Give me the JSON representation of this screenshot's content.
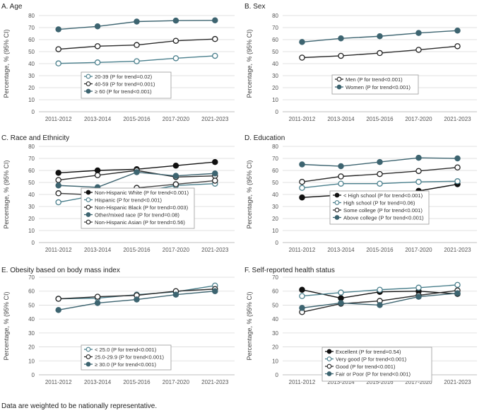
{
  "footnote": "Data are weighted to be nationally representative.",
  "chart_data": [
    {
      "type": "line",
      "title": "A. Age",
      "ylabel": "Percentage, % (95% CI)",
      "ylim": [
        0,
        80
      ],
      "yticks": [
        0,
        10,
        20,
        30,
        40,
        50,
        60,
        70,
        80
      ],
      "categories": [
        "2011-2012",
        "2013-2014",
        "2015-2016",
        "2017-2020",
        "2021-2023"
      ],
      "series": [
        {
          "name": "20-39 (P for trend=0.02)",
          "marker": "open",
          "color": "#4a7f8c",
          "values": [
            40.2,
            41.0,
            42.0,
            44.5,
            46.5
          ]
        },
        {
          "name": "40-59 (P for trend=0.001)",
          "marker": "open",
          "color": "#2b2b2b",
          "values": [
            52.0,
            54.5,
            55.5,
            59.0,
            60.5
          ]
        },
        {
          "name": "≥ 60 (P for trend<0.001)",
          "marker": "filled",
          "color": "#3d6470",
          "values": [
            68.5,
            71.0,
            75.0,
            75.8,
            76.0
          ]
        }
      ]
    },
    {
      "type": "line",
      "title": "B. Sex",
      "ylabel": "Percentage, % (95% CI)",
      "ylim": [
        0,
        80
      ],
      "yticks": [
        0,
        10,
        20,
        30,
        40,
        50,
        60,
        70,
        80
      ],
      "categories": [
        "2011-2012",
        "2013-2014",
        "2015-2016",
        "2017-2020",
        "2021-2023"
      ],
      "series": [
        {
          "name": "Men (P for trend<0.001)",
          "marker": "open",
          "color": "#2b2b2b",
          "values": [
            45.0,
            46.5,
            48.8,
            51.5,
            54.5
          ]
        },
        {
          "name": "Women (P for trend<0.001)",
          "marker": "filled",
          "color": "#3d6470",
          "values": [
            58.0,
            61.0,
            62.8,
            65.5,
            67.5
          ]
        }
      ]
    },
    {
      "type": "line",
      "title": "C. Race and Ethnicity",
      "ylabel": "Percentage, % (95% CI)",
      "ylim": [
        0,
        80
      ],
      "yticks": [
        0,
        10,
        20,
        30,
        40,
        50,
        60,
        70,
        80
      ],
      "categories": [
        "2011-2012",
        "2013-2014",
        "2015-2016",
        "2017-2020",
        "2021-2023"
      ],
      "series": [
        {
          "name": "Non-Hispanic White (P for trend<0.001)",
          "marker": "filled",
          "color": "#111111",
          "values": [
            58.0,
            60.0,
            61.0,
            64.0,
            67.0
          ]
        },
        {
          "name": "Hispanic (P for trend<0.001)",
          "marker": "open",
          "color": "#4a7f8c",
          "values": [
            33.5,
            39.5,
            41.5,
            47.5,
            49.0
          ]
        },
        {
          "name": "Non-Hispanic Black (P for trend=0.003)",
          "marker": "open",
          "color": "#2b2b2b",
          "values": [
            52.0,
            56.0,
            60.0,
            54.5,
            55.5
          ]
        },
        {
          "name": "Other/mixed race (P for trend=0.08)",
          "marker": "filled",
          "color": "#3d6470",
          "values": [
            47.5,
            46.0,
            58.5,
            55.5,
            57.5
          ]
        },
        {
          "name": "Non-Hispanic Asian (P for trend=0.56)",
          "marker": "open",
          "color": "#444444",
          "values": [
            41.0,
            39.5,
            45.5,
            48.5,
            51.5
          ]
        }
      ]
    },
    {
      "type": "line",
      "title": "D. Education",
      "ylabel": "Percentage, % (95% CI)",
      "ylim": [
        0,
        80
      ],
      "yticks": [
        0,
        10,
        20,
        30,
        40,
        50,
        60,
        70,
        80
      ],
      "categories": [
        "2011-2012",
        "2013-2014",
        "2015-2016",
        "2017-2020",
        "2021-2023"
      ],
      "series": [
        {
          "name": "< High school (P for trend<0.001)",
          "marker": "filled",
          "color": "#111111",
          "values": [
            37.5,
            39.5,
            39.0,
            43.0,
            48.5
          ]
        },
        {
          "name": "High school (P for trend=0.06)",
          "marker": "open",
          "color": "#4a7f8c",
          "values": [
            45.5,
            49.0,
            49.0,
            50.5,
            51.0
          ]
        },
        {
          "name": "Some college (P for trend<0.001)",
          "marker": "open",
          "color": "#2b2b2b",
          "values": [
            50.5,
            55.0,
            57.0,
            59.5,
            62.5
          ]
        },
        {
          "name": "Above college (P for trend<0.001)",
          "marker": "filled",
          "color": "#3d6470",
          "values": [
            65.0,
            63.5,
            67.0,
            70.5,
            70.0
          ]
        }
      ]
    },
    {
      "type": "line",
      "title": "E. Obesity based on body mass index",
      "ylabel": "Percentage, % (95% CI)",
      "ylim": [
        0,
        70
      ],
      "yticks": [
        0,
        10,
        20,
        30,
        40,
        50,
        60,
        70
      ],
      "categories": [
        "2011-2012",
        "2013-2014",
        "2015-2016",
        "2017-2020",
        "2021-2023"
      ],
      "series": [
        {
          "name": "< 25.0 (P for trend<0.001)",
          "marker": "open",
          "color": "#4a7f8c",
          "values": [
            54.5,
            55.0,
            57.5,
            59.5,
            64.0
          ]
        },
        {
          "name": "25.0-29.9 (P for trend<0.001)",
          "marker": "open",
          "color": "#2b2b2b",
          "values": [
            54.5,
            56.0,
            57.0,
            60.0,
            61.5
          ]
        },
        {
          "name": "≥ 30.0 (P for trend<0.001)",
          "marker": "filled",
          "color": "#3d6470",
          "values": [
            46.5,
            51.5,
            54.0,
            57.5,
            60.0
          ]
        }
      ]
    },
    {
      "type": "line",
      "title": "F. Self-reported health status",
      "ylabel": "Percentage, % (95% CI)",
      "ylim": [
        0,
        70
      ],
      "yticks": [
        0,
        10,
        20,
        30,
        40,
        50,
        60,
        70
      ],
      "categories": [
        "2011-2012",
        "2013-2014",
        "2015-2016",
        "2017-2020",
        "2021-2023"
      ],
      "series": [
        {
          "name": "Excellent (P for trend=0.54)",
          "marker": "filled",
          "color": "#111111",
          "values": [
            61.0,
            55.0,
            59.5,
            60.0,
            58.0
          ]
        },
        {
          "name": "Very good (P for trend<0.001)",
          "marker": "open",
          "color": "#4a7f8c",
          "values": [
            56.5,
            59.0,
            61.0,
            62.5,
            64.5
          ]
        },
        {
          "name": "Good (P for trend<0.001)",
          "marker": "open",
          "color": "#2b2b2b",
          "values": [
            45.0,
            51.0,
            53.0,
            57.0,
            60.5
          ]
        },
        {
          "name": "Fair or Poor (P for trend<0.001)",
          "marker": "filled",
          "color": "#3d6470",
          "values": [
            48.0,
            51.5,
            50.0,
            56.0,
            58.5
          ]
        }
      ]
    }
  ]
}
